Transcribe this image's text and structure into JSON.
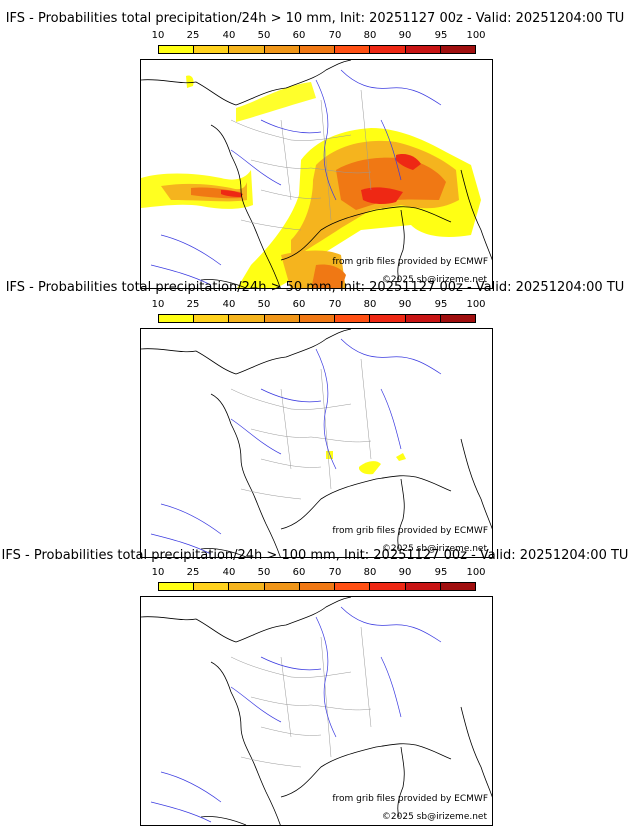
{
  "colorbar": {
    "ticks": [
      "10",
      "25",
      "40",
      "50",
      "60",
      "70",
      "80",
      "90",
      "95",
      "100"
    ],
    "colors": [
      "#ffff14",
      "#ffd21e",
      "#f5b41e",
      "#f09619",
      "#f07814",
      "#ff5014",
      "#ee2814",
      "#c81414",
      "#a00f0f",
      "#5f0a0a"
    ]
  },
  "panels": [
    {
      "title": "IFS - Probabilities total precipitation/24h > 10 mm, Init: 20251127 00z - Valid: 20251204:00 TU",
      "source_text": "from grib files provided by ECMWF",
      "copyright_text": "©2025 sb@irizeme.net"
    },
    {
      "title": "IFS - Probabilities total precipitation/24h > 50 mm, Init: 20251127 00z - Valid: 20251204:00 TU",
      "source_text": "from grib files provided by ECMWF",
      "copyright_text": "©2025 sb@irizeme.net"
    },
    {
      "title": "IFS - Probabilities total precipitation/24h > 100 mm, Init: 20251127 00z - Valid: 20251204:00 TU",
      "source_text": "from grib files provided by ECMWF",
      "copyright_text": "©2025 sb@irizeme.net"
    }
  ]
}
